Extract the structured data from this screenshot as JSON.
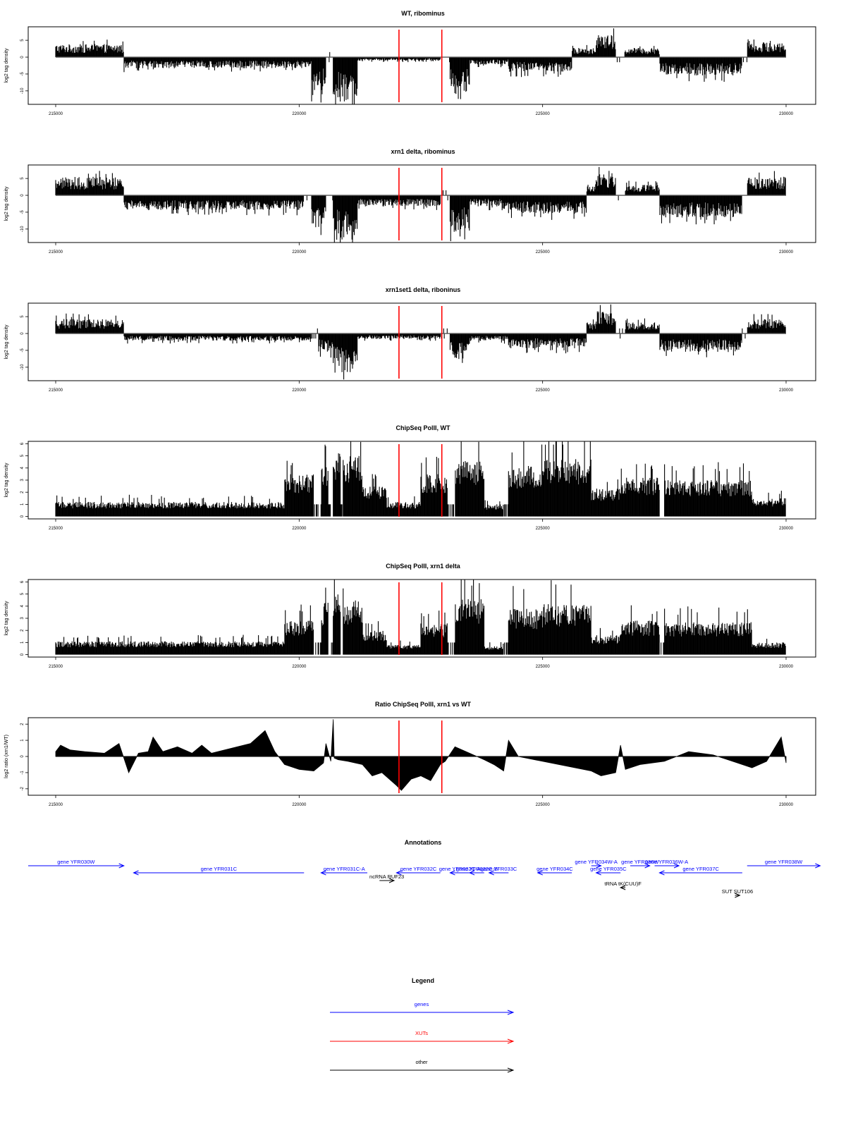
{
  "chart_data": [
    {
      "type": "bar",
      "title": "WT, ribominus",
      "ylabel": "log2 tag density",
      "x_range": [
        215000,
        230000
      ],
      "ylim": [
        -14,
        9
      ],
      "y_ticks": [
        5,
        0,
        -5,
        -10
      ],
      "x_ticks": [
        215000,
        220000,
        225000,
        230000
      ],
      "x_tick_labels": [
        "215000",
        "220000",
        "225000",
        "230000"
      ],
      "markers_x": [
        222050,
        222930
      ],
      "marker_color": "#ff0000",
      "profile": [
        {
          "x0": 215000,
          "x1": 216400,
          "y": 3.5
        },
        {
          "x0": 216400,
          "x1": 220250,
          "y": -3
        },
        {
          "x0": 220250,
          "x1": 220550,
          "y": -9
        },
        {
          "x0": 220700,
          "x1": 221200,
          "y": -12
        },
        {
          "x0": 221200,
          "x1": 222900,
          "y": -1
        },
        {
          "x0": 223100,
          "x1": 223500,
          "y": -10
        },
        {
          "x0": 223500,
          "x1": 224300,
          "y": -2
        },
        {
          "x0": 224300,
          "x1": 225600,
          "y": -4
        },
        {
          "x0": 225600,
          "x1": 226100,
          "y": 2.5
        },
        {
          "x0": 226100,
          "x1": 226500,
          "y": 6
        },
        {
          "x0": 226700,
          "x1": 227400,
          "y": 2.5
        },
        {
          "x0": 227400,
          "x1": 229100,
          "y": -5
        },
        {
          "x0": 229200,
          "x1": 230000,
          "y": 4
        }
      ]
    },
    {
      "type": "bar",
      "title": "xrn1 delta, ribominus",
      "ylabel": "log2 tag density",
      "x_range": [
        215000,
        230000
      ],
      "ylim": [
        -14,
        9
      ],
      "y_ticks": [
        5,
        0,
        -5,
        -10
      ],
      "x_ticks": [
        215000,
        220000,
        225000,
        230000
      ],
      "x_tick_labels": [
        "215000",
        "220000",
        "225000",
        "230000"
      ],
      "markers_x": [
        222050,
        222930
      ],
      "marker_color": "#ff0000",
      "profile": [
        {
          "x0": 215000,
          "x1": 216400,
          "y": 5
        },
        {
          "x0": 216400,
          "x1": 220100,
          "y": -4
        },
        {
          "x0": 220250,
          "x1": 220550,
          "y": -9
        },
        {
          "x0": 220700,
          "x1": 221200,
          "y": -12
        },
        {
          "x0": 221200,
          "x1": 222900,
          "y": -3
        },
        {
          "x0": 223100,
          "x1": 223500,
          "y": -10
        },
        {
          "x0": 223500,
          "x1": 224300,
          "y": -3
        },
        {
          "x0": 224300,
          "x1": 225900,
          "y": -5
        },
        {
          "x0": 225600,
          "x1": 226100,
          "y": 3
        },
        {
          "x0": 226100,
          "x1": 226500,
          "y": 6
        },
        {
          "x0": 226700,
          "x1": 227400,
          "y": 3
        },
        {
          "x0": 227400,
          "x1": 229100,
          "y": -6
        },
        {
          "x0": 229200,
          "x1": 230000,
          "y": 5
        }
      ]
    },
    {
      "type": "bar",
      "title": "xrn1set1 delta, riboninus",
      "ylabel": "log2 tag density",
      "x_range": [
        215000,
        230000
      ],
      "ylim": [
        -14,
        9
      ],
      "y_ticks": [
        5,
        0,
        -5,
        -10
      ],
      "x_ticks": [
        215000,
        220000,
        225000,
        230000
      ],
      "x_tick_labels": [
        "215000",
        "220000",
        "225000",
        "230000"
      ],
      "markers_x": [
        222050,
        222930
      ],
      "marker_color": "#ff0000",
      "profile": [
        {
          "x0": 215000,
          "x1": 216400,
          "y": 4
        },
        {
          "x0": 216400,
          "x1": 220250,
          "y": -2
        },
        {
          "x0": 220400,
          "x1": 220700,
          "y": -5
        },
        {
          "x0": 220700,
          "x1": 221200,
          "y": -11
        },
        {
          "x0": 221200,
          "x1": 222900,
          "y": -1.5
        },
        {
          "x0": 223100,
          "x1": 223500,
          "y": -7
        },
        {
          "x0": 223500,
          "x1": 224300,
          "y": -2
        },
        {
          "x0": 224300,
          "x1": 225900,
          "y": -4
        },
        {
          "x0": 225600,
          "x1": 226100,
          "y": 3
        },
        {
          "x0": 226100,
          "x1": 226500,
          "y": 6
        },
        {
          "x0": 226700,
          "x1": 227400,
          "y": 3
        },
        {
          "x0": 227400,
          "x1": 229100,
          "y": -5
        },
        {
          "x0": 229200,
          "x1": 230000,
          "y": 4
        }
      ]
    },
    {
      "type": "bar",
      "title": "ChipSeq PolII, WT",
      "ylabel": "log2 tag density",
      "x_range": [
        215000,
        230000
      ],
      "ylim": [
        -0.2,
        6.2
      ],
      "y_ticks": [
        0,
        1,
        2,
        3,
        4,
        5,
        6
      ],
      "x_ticks": [
        215000,
        220000,
        225000,
        230000
      ],
      "x_tick_labels": [
        "215000",
        "220000",
        "225000",
        "230000"
      ],
      "markers_x": [
        222050,
        222930
      ],
      "marker_color": "#ff0000",
      "profile": [
        {
          "x0": 215000,
          "x1": 219700,
          "y": 1.2
        },
        {
          "x0": 219700,
          "x1": 220300,
          "y": 3.5
        },
        {
          "x0": 220450,
          "x1": 220600,
          "y": 4.5
        },
        {
          "x0": 220700,
          "x1": 220850,
          "y": 5.3
        },
        {
          "x0": 220900,
          "x1": 221300,
          "y": 5
        },
        {
          "x0": 221300,
          "x1": 221800,
          "y": 2.5
        },
        {
          "x0": 221800,
          "x1": 222500,
          "y": 1.2
        },
        {
          "x0": 222500,
          "x1": 223050,
          "y": 3.5
        },
        {
          "x0": 223200,
          "x1": 223800,
          "y": 4.7
        },
        {
          "x0": 223800,
          "x1": 224200,
          "y": 1
        },
        {
          "x0": 224300,
          "x1": 225000,
          "y": 4.2
        },
        {
          "x0": 225000,
          "x1": 226000,
          "y": 4.8
        },
        {
          "x0": 226000,
          "x1": 226600,
          "y": 2.3
        },
        {
          "x0": 226600,
          "x1": 227400,
          "y": 3.2
        },
        {
          "x0": 227500,
          "x1": 229300,
          "y": 3
        },
        {
          "x0": 229300,
          "x1": 230000,
          "y": 1.5
        }
      ]
    },
    {
      "type": "bar",
      "title": "ChipSeq PolII, xrn1 delta",
      "ylabel": "log2 tag density",
      "x_range": [
        215000,
        230000
      ],
      "ylim": [
        -0.2,
        6.2
      ],
      "y_ticks": [
        0,
        1,
        2,
        3,
        4,
        5,
        6
      ],
      "x_ticks": [
        215000,
        220000,
        225000,
        230000
      ],
      "x_tick_labels": [
        "215000",
        "220000",
        "225000",
        "230000"
      ],
      "markers_x": [
        222050,
        222930
      ],
      "marker_color": "#ff0000",
      "profile": [
        {
          "x0": 215000,
          "x1": 219700,
          "y": 1.1
        },
        {
          "x0": 219700,
          "x1": 220300,
          "y": 2.8
        },
        {
          "x0": 220450,
          "x1": 220600,
          "y": 4.3
        },
        {
          "x0": 220700,
          "x1": 220850,
          "y": 5.1
        },
        {
          "x0": 220900,
          "x1": 221300,
          "y": 4.5
        },
        {
          "x0": 221300,
          "x1": 221800,
          "y": 2
        },
        {
          "x0": 221800,
          "x1": 222500,
          "y": 0.8
        },
        {
          "x0": 222500,
          "x1": 223050,
          "y": 2.6
        },
        {
          "x0": 223200,
          "x1": 223800,
          "y": 4.6
        },
        {
          "x0": 223800,
          "x1": 224200,
          "y": 0.7
        },
        {
          "x0": 224300,
          "x1": 225000,
          "y": 3.8
        },
        {
          "x0": 225000,
          "x1": 226000,
          "y": 4.2
        },
        {
          "x0": 226000,
          "x1": 226600,
          "y": 1.6
        },
        {
          "x0": 226600,
          "x1": 227400,
          "y": 2.8
        },
        {
          "x0": 227500,
          "x1": 229300,
          "y": 2.7
        },
        {
          "x0": 229300,
          "x1": 230000,
          "y": 1
        }
      ]
    },
    {
      "type": "area",
      "title": "Ratio ChipSeq PolII, xrn1 vs WT",
      "ylabel": "log2 ratio (xrn1/WT)",
      "x_range": [
        215000,
        230000
      ],
      "ylim": [
        -2.4,
        2.4
      ],
      "y_ticks": [
        2,
        1,
        0,
        -1,
        -2
      ],
      "x_ticks": [
        215000,
        220000,
        225000,
        230000
      ],
      "x_tick_labels": [
        "215000",
        "220000",
        "225000",
        "230000"
      ],
      "markers_x": [
        222050,
        222930
      ],
      "marker_color": "#ff0000",
      "x": [
        215000,
        215100,
        215300,
        215600,
        216000,
        216300,
        216500,
        216700,
        216900,
        217000,
        217200,
        217500,
        217800,
        218000,
        218200,
        218600,
        219000,
        219300,
        219500,
        219700,
        220000,
        220300,
        220500,
        220550,
        220650,
        220700,
        220720,
        220800,
        221000,
        221300,
        221500,
        221700,
        222000,
        222100,
        222300,
        222500,
        222700,
        222900,
        223000,
        223200,
        223500,
        223800,
        224000,
        224200,
        224300,
        224500,
        225000,
        225500,
        226000,
        226200,
        226500,
        226600,
        226700,
        227000,
        227500,
        228000,
        228500,
        229000,
        229300,
        229600,
        229900,
        230000
      ],
      "y": [
        0.3,
        0.7,
        0.4,
        0.3,
        0.2,
        0.8,
        -1,
        0.2,
        0.3,
        1.2,
        0.3,
        0.6,
        0.2,
        0.7,
        0.2,
        0.5,
        0.8,
        1.6,
        0.3,
        -0.5,
        -0.8,
        -0.9,
        -0.4,
        0.8,
        -0.3,
        2.3,
        -0.1,
        -0.2,
        -0.3,
        -0.5,
        -1.2,
        -1.0,
        -1.8,
        -2.1,
        -1.4,
        -1.2,
        -1.5,
        -0.5,
        -0.3,
        0.6,
        0.2,
        -0.2,
        -0.5,
        -0.9,
        1.0,
        0,
        -0.3,
        -0.6,
        -0.9,
        -1.2,
        -1.0,
        0.7,
        -0.8,
        -0.5,
        -0.3,
        0.3,
        0.1,
        -0.4,
        -0.7,
        -0.3,
        1.2,
        -0.4
      ]
    }
  ],
  "annotations": {
    "title": "Annotations",
    "x_range": [
      215000,
      230000
    ],
    "features": [
      {
        "label": "gene YFR030W",
        "kind": "gene",
        "strand": "+",
        "start": 214200,
        "end": 216400,
        "row": 0
      },
      {
        "label": "gene YFR031C",
        "kind": "gene",
        "strand": "-",
        "start": 216600,
        "end": 220100,
        "row": 1
      },
      {
        "label": "gene YFR031C-A",
        "kind": "gene",
        "strand": "-",
        "start": 220450,
        "end": 221400,
        "row": 1
      },
      {
        "label": "gene YFR032C",
        "kind": "gene",
        "strand": "-",
        "start": 222000,
        "end": 222900,
        "row": 1
      },
      {
        "label": "gene YFR032C-A",
        "kind": "gene",
        "strand": "-",
        "start": 223100,
        "end": 223500,
        "row": 1
      },
      {
        "label": "gene YFR032C-B",
        "kind": "gene",
        "strand": "-",
        "start": 223500,
        "end": 223800,
        "row": 1
      },
      {
        "label": "gene YFR033C",
        "kind": "gene",
        "strand": "-",
        "start": 223900,
        "end": 224300,
        "row": 1
      },
      {
        "label": "gene YFR034C",
        "kind": "gene",
        "strand": "-",
        "start": 224900,
        "end": 225600,
        "row": 1
      },
      {
        "label": "gene YFR034W-A",
        "kind": "gene",
        "strand": "+",
        "start": 226000,
        "end": 226200,
        "row": 0
      },
      {
        "label": "gene YFR035C",
        "kind": "gene",
        "strand": "-",
        "start": 226100,
        "end": 226600,
        "row": 1
      },
      {
        "label": "gene YFR036W",
        "kind": "gene",
        "strand": "+",
        "start": 226800,
        "end": 227200,
        "row": 0
      },
      {
        "label": "gene YFR036W-A",
        "kind": "gene",
        "strand": "+",
        "start": 227300,
        "end": 227800,
        "row": 0
      },
      {
        "label": "gene YFR037C",
        "kind": "gene",
        "strand": "-",
        "start": 227400,
        "end": 229100,
        "row": 1
      },
      {
        "label": "gene YFR038W",
        "kind": "gene",
        "strand": "+",
        "start": 229200,
        "end": 230700,
        "row": 0
      },
      {
        "label": "ncRNA RUF23",
        "kind": "other",
        "strand": "+",
        "start": 221650,
        "end": 221950,
        "row": 2
      },
      {
        "label": "tRNA tK(CUU)F",
        "kind": "other",
        "strand": "-",
        "start": 226600,
        "end": 226700,
        "row": 3
      },
      {
        "label": "SUT SUT106",
        "kind": "other",
        "strand": "+",
        "start": 228950,
        "end": 229050,
        "row": 4
      }
    ]
  },
  "legend": {
    "title": "Legend",
    "items": [
      {
        "label": "genes",
        "color": "#0000ff"
      },
      {
        "label": "XUTs",
        "color": "#ff0000"
      },
      {
        "label": "other",
        "color": "#000000"
      }
    ]
  }
}
